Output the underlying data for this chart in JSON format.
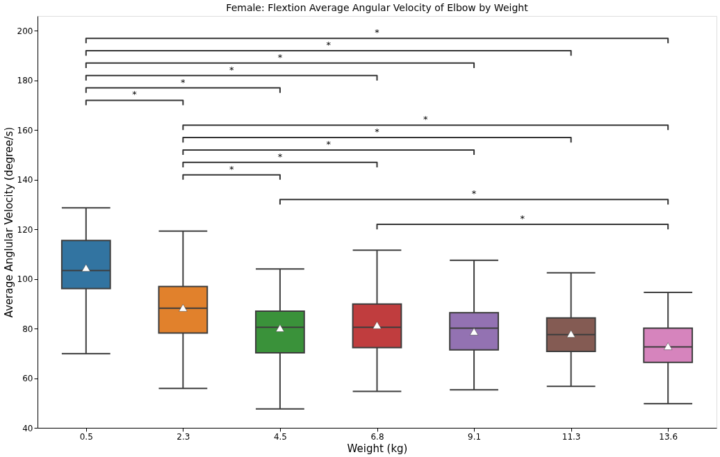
{
  "chart_data": {
    "type": "box",
    "title": "Female: Flextion Average Angular Velocity of Elbow by Weight",
    "xlabel": "Weight (kg)",
    "ylabel": "Average Anglular Velocity (degree/s)",
    "categories": [
      "0.5",
      "2.3",
      "4.5",
      "6.8",
      "9.1",
      "11.3",
      "13.6"
    ],
    "colors": [
      "#3274a1",
      "#e1812c",
      "#3a923a",
      "#c03d3e",
      "#9372b2",
      "#845b53",
      "#d684bd"
    ],
    "boxes": [
      {
        "low": 69.9,
        "q1": 96.1,
        "median": 103.4,
        "q3": 115.5,
        "high": 128.7,
        "mean": 104.5
      },
      {
        "low": 55.9,
        "q1": 78.2,
        "median": 88.2,
        "q3": 97,
        "high": 119.3,
        "mean": 88.4
      },
      {
        "low": 47.6,
        "q1": 70.2,
        "median": 80.5,
        "q3": 87,
        "high": 104,
        "mean": 80.2
      },
      {
        "low": 54.7,
        "q1": 72.3,
        "median": 80.5,
        "q3": 89.9,
        "high": 111.6,
        "mean": 81.4
      },
      {
        "low": 55.3,
        "q1": 71.4,
        "median": 80.2,
        "q3": 86.4,
        "high": 107.5,
        "mean": 78.8
      },
      {
        "low": 56.7,
        "q1": 70.8,
        "median": 77.6,
        "q3": 84.3,
        "high": 102.5,
        "mean": 77.9
      },
      {
        "low": 49.7,
        "q1": 66.4,
        "median": 72.6,
        "q3": 80.2,
        "high": 94.6,
        "mean": 72.9
      }
    ],
    "ylim": [
      40,
      206
    ],
    "yticks": [
      40,
      60,
      80,
      100,
      120,
      140,
      160,
      180,
      200
    ],
    "grid": false,
    "annotations": [
      "*",
      "*",
      "*",
      "*",
      "*",
      "*",
      "*",
      "*",
      "*",
      "*",
      "*",
      "*",
      "*"
    ]
  }
}
